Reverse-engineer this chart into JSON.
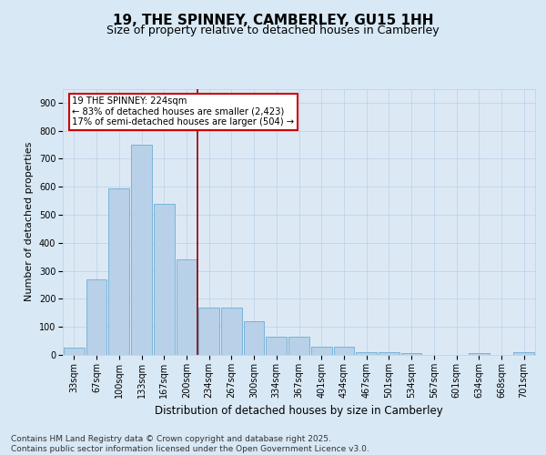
{
  "title": "19, THE SPINNEY, CAMBERLEY, GU15 1HH",
  "subtitle": "Size of property relative to detached houses in Camberley",
  "xlabel": "Distribution of detached houses by size in Camberley",
  "ylabel": "Number of detached properties",
  "categories": [
    "33sqm",
    "67sqm",
    "100sqm",
    "133sqm",
    "167sqm",
    "200sqm",
    "234sqm",
    "267sqm",
    "300sqm",
    "334sqm",
    "367sqm",
    "401sqm",
    "434sqm",
    "467sqm",
    "501sqm",
    "534sqm",
    "567sqm",
    "601sqm",
    "634sqm",
    "668sqm",
    "701sqm"
  ],
  "values": [
    25,
    270,
    595,
    750,
    540,
    340,
    170,
    170,
    120,
    65,
    65,
    30,
    30,
    10,
    10,
    5,
    0,
    0,
    5,
    0,
    10
  ],
  "bar_color": "#b8d0e8",
  "bar_edge_color": "#6baed6",
  "grid_color": "#c0d4e8",
  "background_color": "#d8e8f5",
  "plot_bg_color": "#dce9f5",
  "annotation_text": "19 THE SPINNEY: 224sqm\n← 83% of detached houses are smaller (2,423)\n17% of semi-detached houses are larger (504) →",
  "vline_color": "#8b0000",
  "annotation_box_color": "#ffffff",
  "annotation_box_edge": "#cc0000",
  "ylim": [
    0,
    950
  ],
  "yticks": [
    0,
    100,
    200,
    300,
    400,
    500,
    600,
    700,
    800,
    900
  ],
  "footer": "Contains HM Land Registry data © Crown copyright and database right 2025.\nContains public sector information licensed under the Open Government Licence v3.0.",
  "title_fontsize": 11,
  "subtitle_fontsize": 9,
  "tick_fontsize": 7,
  "xlabel_fontsize": 8.5,
  "ylabel_fontsize": 8,
  "footer_fontsize": 6.5
}
